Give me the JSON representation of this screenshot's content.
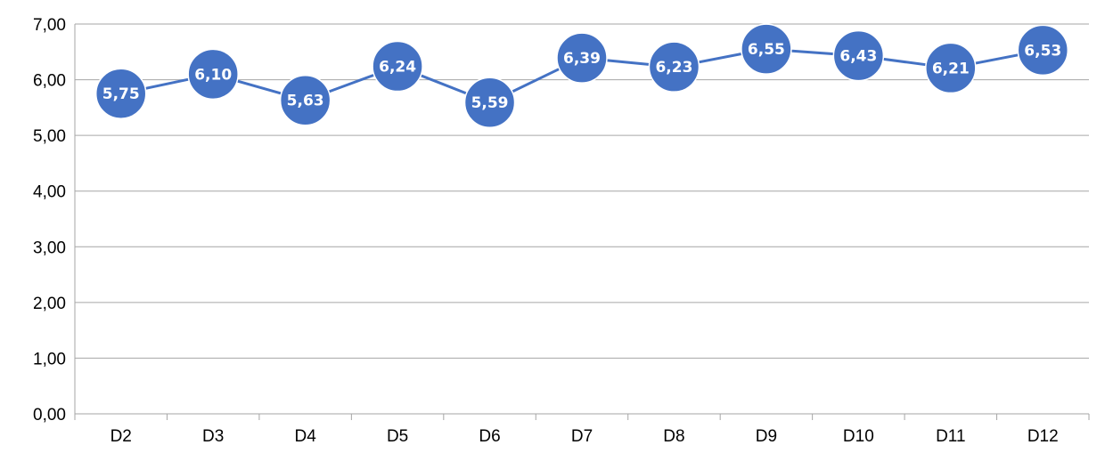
{
  "chart_data": {
    "type": "line",
    "categories": [
      "D2",
      "D3",
      "D4",
      "D5",
      "D6",
      "D7",
      "D8",
      "D9",
      "D10",
      "D11",
      "D12"
    ],
    "values": [
      5.75,
      6.1,
      5.63,
      6.24,
      5.59,
      6.39,
      6.23,
      6.55,
      6.43,
      6.21,
      6.53
    ],
    "data_labels": [
      "5,75",
      "6,10",
      "5,63",
      "6,24",
      "5,59",
      "6,39",
      "6,23",
      "6,55",
      "6,43",
      "6,21",
      "6,53"
    ],
    "title": "",
    "xlabel": "",
    "ylabel": "",
    "ylim": [
      0,
      7
    ],
    "y_ticks": [
      0,
      1,
      2,
      3,
      4,
      5,
      6,
      7
    ],
    "y_tick_labels": [
      "0,00",
      "1,00",
      "2,00",
      "3,00",
      "4,00",
      "5,00",
      "6,00",
      "7,00"
    ],
    "grid": "horizontal",
    "legend": "none",
    "colors": {
      "series": "#4472C4",
      "marker_border": "#ffffff",
      "gridline": "#A6A6A6",
      "label_text": "#ffffff"
    }
  }
}
